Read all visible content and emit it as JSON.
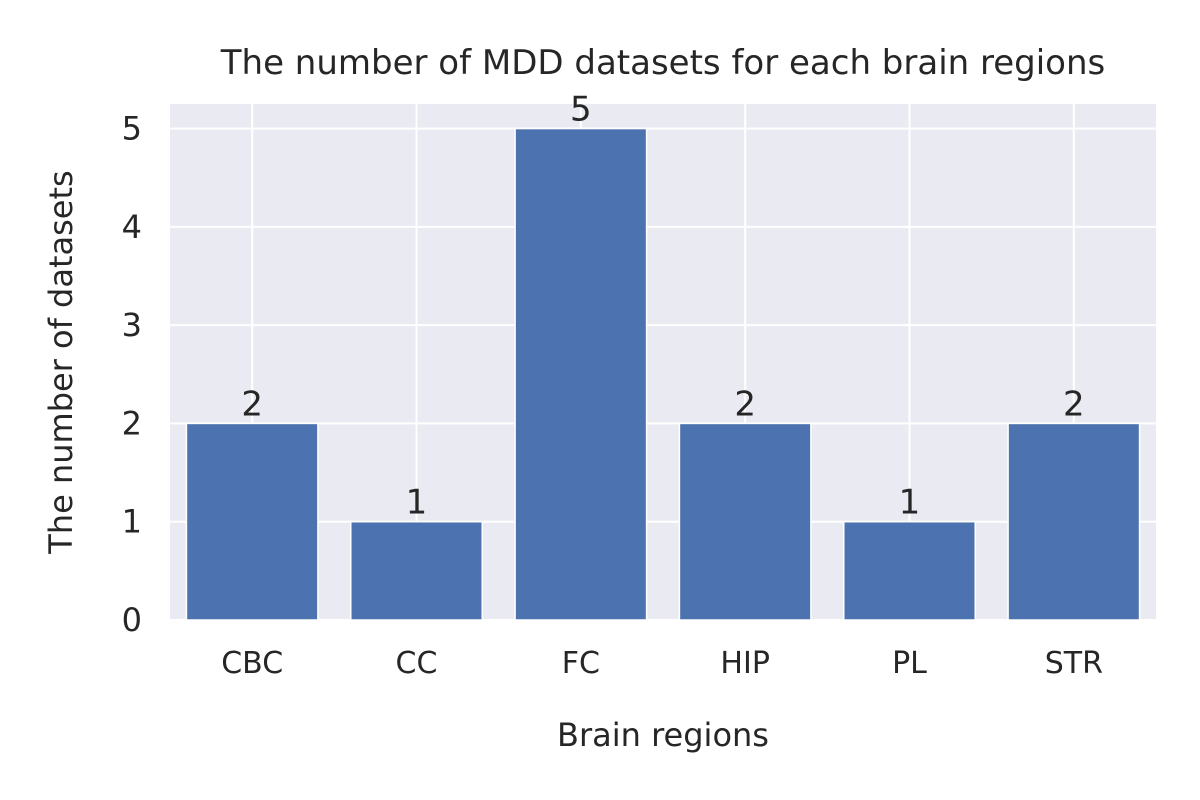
{
  "chart_data": {
    "type": "bar",
    "title": "The number of MDD datasets for each brain regions",
    "xlabel": "Brain regions",
    "ylabel": "The number of datasets",
    "categories": [
      "CBC",
      "CC",
      "FC",
      "HIP",
      "PL",
      "STR"
    ],
    "values": [
      2,
      1,
      5,
      2,
      1,
      2
    ],
    "data_labels": [
      "2",
      "1",
      "5",
      "2",
      "1",
      "2"
    ],
    "ylim": [
      0,
      5.25
    ],
    "yticks": [
      0,
      1,
      2,
      3,
      4,
      5
    ],
    "grid": true,
    "legend": "none",
    "colors": {
      "bar": "#4c72b0",
      "plot_background": "#eaeaf2",
      "grid": "#ffffff"
    }
  }
}
